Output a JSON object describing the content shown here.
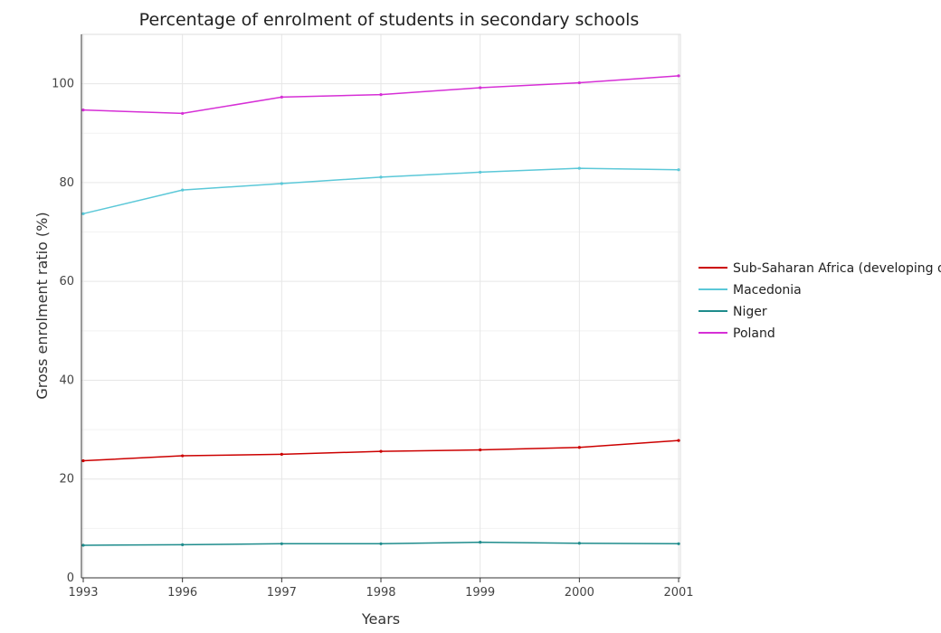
{
  "chart_data": {
    "type": "line",
    "title": "Percentage of enrolment of students in secondary schools",
    "xlabel": "Years",
    "ylabel": "Gross enrolment ratio (%)",
    "categories": [
      "1993",
      "1996",
      "1997",
      "1998",
      "1999",
      "2000",
      "2001"
    ],
    "ylim": [
      0,
      110
    ],
    "yticks": [
      0,
      20,
      40,
      60,
      80,
      100
    ],
    "grid": true,
    "legend_position": "right",
    "series": [
      {
        "name": "Sub-Saharan Africa (developing only)",
        "color": "#cc0000",
        "values": [
          23.7,
          24.7,
          25.0,
          25.6,
          25.9,
          26.4,
          27.8
        ]
      },
      {
        "name": "Macedonia",
        "color": "#5bc8d8",
        "values": [
          73.7,
          78.5,
          79.8,
          81.1,
          82.1,
          82.9,
          82.6
        ]
      },
      {
        "name": "Niger",
        "color": "#1e8c8c",
        "values": [
          6.6,
          6.7,
          6.9,
          6.9,
          7.2,
          7.0,
          6.9
        ]
      },
      {
        "name": "Poland",
        "color": "#d62fd6",
        "values": [
          94.7,
          94.0,
          97.3,
          97.8,
          99.2,
          100.2,
          101.6
        ]
      }
    ]
  }
}
